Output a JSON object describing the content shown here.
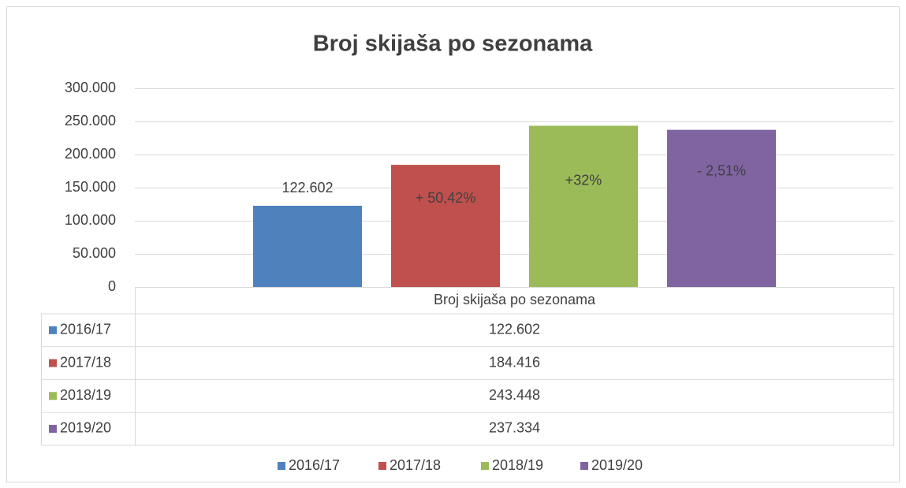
{
  "chart_data": {
    "type": "bar",
    "title": "Broj skijaša po sezonama",
    "categories": [
      "Broj skijaša po sezonama"
    ],
    "series": [
      {
        "name": "2016/17",
        "color": "#4f81bd",
        "values": [
          122602
        ],
        "value_labels": [
          "122.602"
        ]
      },
      {
        "name": "2017/18",
        "color": "#c0504d",
        "values": [
          184416
        ],
        "value_labels": [
          "184.416"
        ],
        "annotation": "+ 50,42%"
      },
      {
        "name": "2018/19",
        "color": "#9bbb59",
        "values": [
          243448
        ],
        "value_labels": [
          "243.448"
        ],
        "annotation": "+32%"
      },
      {
        "name": "2019/20",
        "color": "#8064a2",
        "values": [
          237334
        ],
        "value_labels": [
          "237.334"
        ],
        "annotation": "- 2,51%"
      }
    ],
    "ylim": [
      0,
      300000
    ],
    "yticks": [
      0,
      {
        "value": 50000,
        "label": "50.000"
      },
      {
        "value": 100000,
        "label": "100.000"
      },
      {
        "value": 150000,
        "label": "150.000"
      },
      {
        "value": 200000,
        "label": "200.000"
      },
      {
        "value": 250000,
        "label": "250.000"
      },
      {
        "value": 300000,
        "label": "300.000"
      }
    ],
    "grid": true,
    "data_table": true,
    "legend": "bottom"
  }
}
